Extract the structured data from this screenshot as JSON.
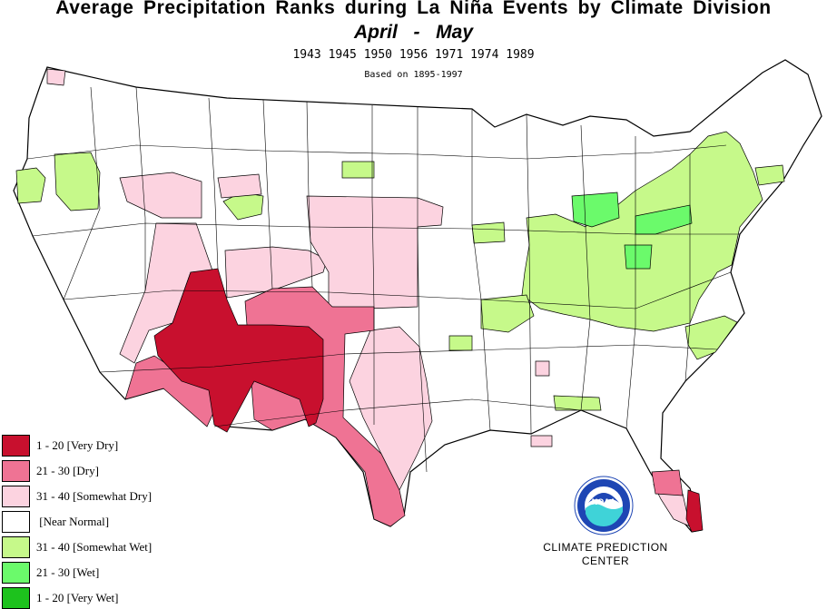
{
  "header": {
    "title": "Average Precipitation Ranks during La  Niña Events by Climate Division",
    "subtitle": "April  -  May",
    "years": "1943 1945 1950 1956 1971 1974 1989",
    "basis": "Based on 1895-1997"
  },
  "legend": {
    "items": [
      {
        "label": "1 - 20 [Very Dry]",
        "color": "#c8102e"
      },
      {
        "label": "21 - 30 [Dry]",
        "color": "#ef7394"
      },
      {
        "label": "31 - 40 [Somewhat Dry]",
        "color": "#fcd3e0"
      },
      {
        "label": " [Near Normal]",
        "color": "#ffffff"
      },
      {
        "label": "31 - 40 [Somewhat Wet]",
        "color": "#c6f98a"
      },
      {
        "label": "21 - 30 [Wet]",
        "color": "#6bfa6b"
      },
      {
        "label": "1 - 20 [Very Wet]",
        "color": "#1dc21d"
      }
    ]
  },
  "logo": {
    "text": "NOAA",
    "icon": "noaa-logo-icon"
  },
  "organization": {
    "line1": "CLIMATE PREDICTION",
    "line2": "CENTER"
  },
  "colors": {
    "outline": "#000000",
    "logo_blue": "#1e46b4",
    "logo_teal": "#3fd3d8"
  }
}
